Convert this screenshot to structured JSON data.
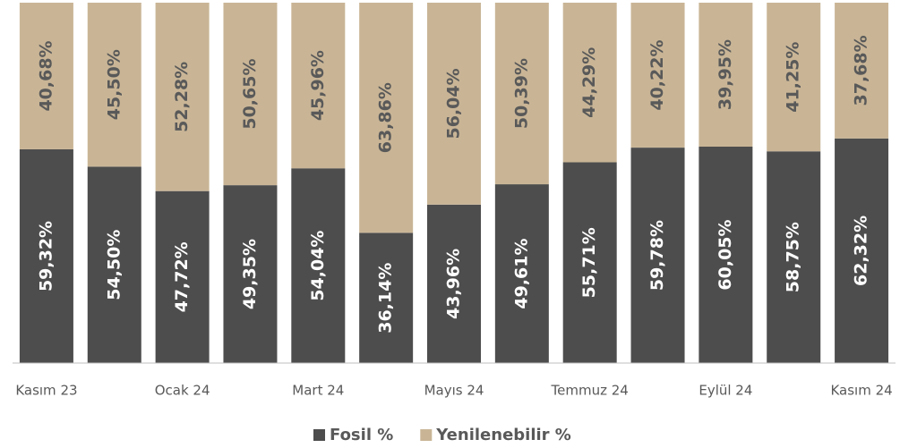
{
  "chart_data": {
    "type": "stacked_bar",
    "categories": [
      "Kasım 23",
      null,
      "Ocak 24",
      null,
      "Mart 24",
      null,
      "Mayıs 24",
      null,
      "Temmuz 24",
      null,
      "Eylül 24",
      null,
      "Kasım 24"
    ],
    "series": [
      {
        "name": "Fosil %",
        "color": "#4d4d4d",
        "values": [
          59.32,
          54.5,
          47.72,
          49.35,
          54.04,
          36.14,
          43.96,
          49.61,
          55.71,
          59.78,
          60.05,
          58.75,
          62.32
        ],
        "value_labels": [
          "59,32%",
          "54,50%",
          "47,72%",
          "49,35%",
          "54,04%",
          "36,14%",
          "43,96%",
          "49,61%",
          "55,71%",
          "59,78%",
          "60,05%",
          "58,75%",
          "62,32%"
        ]
      },
      {
        "name": "Yenilenebilir %",
        "color": "#c9b596",
        "values": [
          40.68,
          45.5,
          52.28,
          50.65,
          45.96,
          63.86,
          56.04,
          50.39,
          44.29,
          40.22,
          39.95,
          41.25,
          37.68
        ],
        "value_labels": [
          "40,68%",
          "45,50%",
          "52,28%",
          "50,65%",
          "45,96%",
          "63,86%",
          "56,04%",
          "50,39%",
          "44,29%",
          "40,22%",
          "39,95%",
          "41,25%",
          "37,68%"
        ]
      }
    ],
    "ylim": [
      0,
      100
    ],
    "legend": "bottom"
  }
}
